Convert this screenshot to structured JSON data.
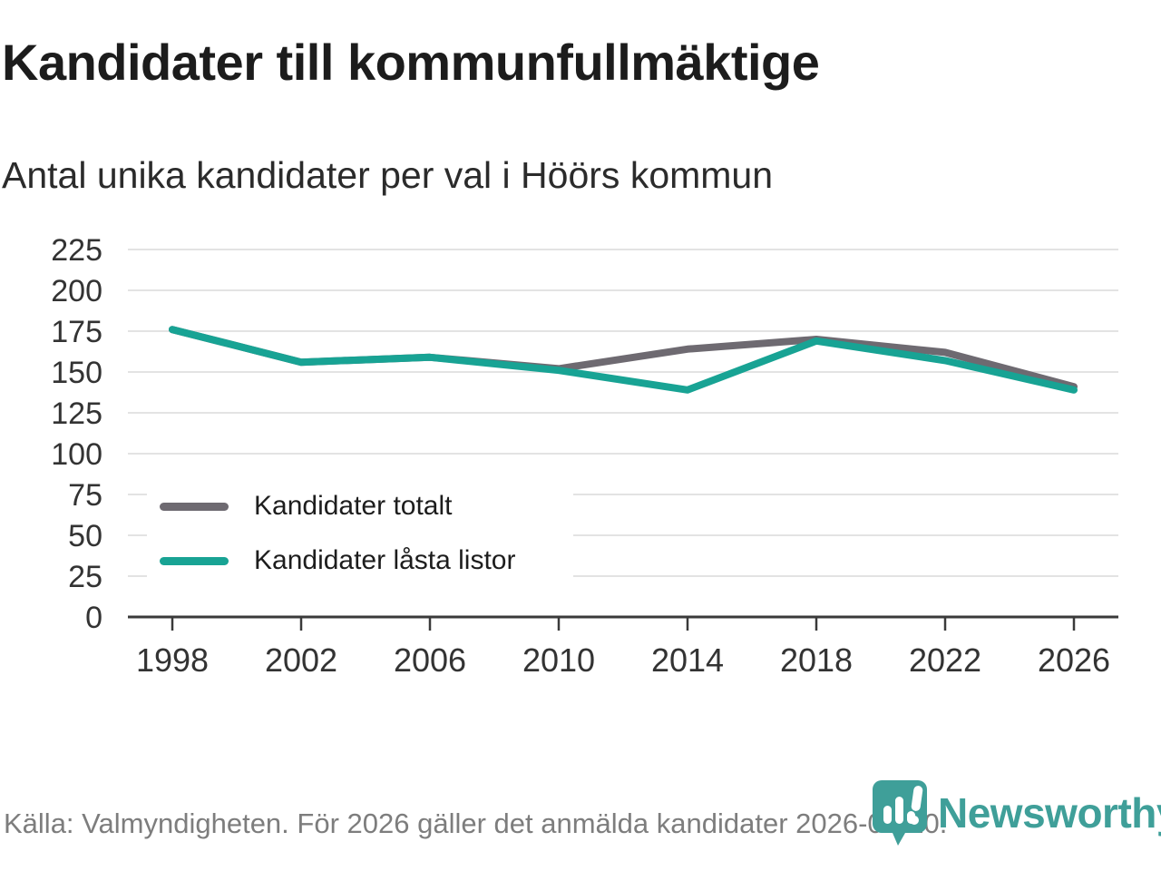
{
  "header": {
    "title": "Kandidater till kommunfullmäktige",
    "subtitle": "Antal unika kandidater per val i Höörs kommun"
  },
  "chart_data": {
    "type": "line",
    "title": "Kandidater till kommunfullmäktige",
    "subtitle": "Antal unika kandidater per val i Höörs kommun",
    "x": [
      1998,
      2002,
      2006,
      2010,
      2014,
      2018,
      2022,
      2026
    ],
    "xticklabels": [
      "1998",
      "2002",
      "2006",
      "2010",
      "2014",
      "2018",
      "2022",
      "2026"
    ],
    "series": [
      {
        "name": "Kandidater totalt",
        "color": "#6e6a71",
        "values": [
          176,
          156,
          159,
          152,
          164,
          170,
          162,
          141
        ]
      },
      {
        "name": "Kandidater låsta listor",
        "color": "#18a394",
        "values": [
          176,
          156,
          159,
          151,
          139,
          169,
          157,
          139
        ]
      }
    ],
    "ylim": [
      0,
      225
    ],
    "yticks": [
      0,
      25,
      50,
      75,
      100,
      125,
      150,
      175,
      200,
      225
    ],
    "grid": true,
    "legend_position": "inside-lower-left",
    "source": "Källa: Valmyndigheten. För 2026 gäller det anmälda kandidater 2026-04-10."
  },
  "colors": {
    "gridline": "#e3e3e3",
    "axis": "#3a3a3a",
    "tick_label": "#333333",
    "footer_text": "#7d7d7d",
    "brand": "#3f9f99"
  },
  "brand": {
    "wordmark": "Newsworthy"
  }
}
